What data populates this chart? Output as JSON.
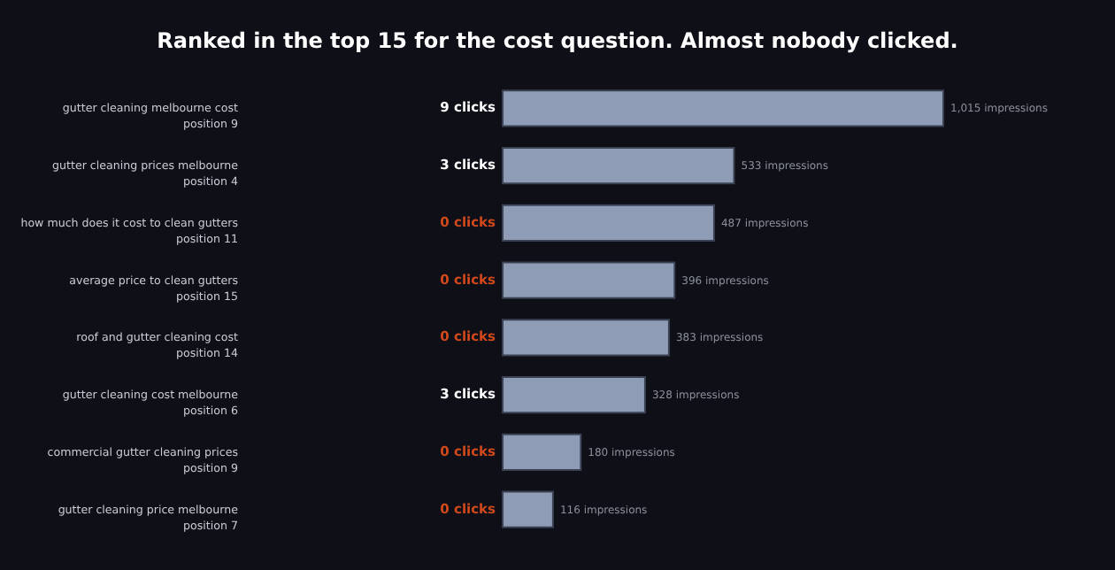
{
  "chart_data": {
    "type": "bar",
    "orientation": "horizontal",
    "title": "Ranked in the top 15 for the cost question. Almost nobody clicked.",
    "categories": [
      "gutter cleaning melbourne cost\nposition 9",
      "gutter cleaning prices melbourne\nposition 4",
      "how much does it cost to clean gutters\nposition 11",
      "average price to clean gutters\nposition 15",
      "roof and gutter cleaning cost\nposition 14",
      "gutter cleaning cost melbourne\nposition 6",
      "commercial gutter cleaning prices\nposition 9",
      "gutter cleaning price melbourne\nposition 7"
    ],
    "values": [
      1015,
      533,
      487,
      396,
      383,
      328,
      180,
      116
    ],
    "color": "#8e9cb6",
    "value_labels": [
      "1,015 impressions",
      "533 impressions",
      "487 impressions",
      "396 impressions",
      "383 impressions",
      "328 impressions",
      "180 impressions",
      "116 impressions"
    ],
    "annotations": [
      "9 clicks",
      "3 clicks",
      "0 clicks",
      "0 clicks",
      "0 clicks",
      "3 clicks",
      "0 clicks",
      "0 clicks"
    ],
    "tick_labels": "y"
  }
}
